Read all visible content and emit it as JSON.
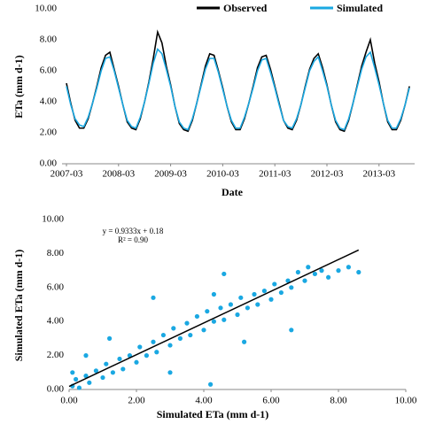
{
  "chart_data": [
    {
      "type": "line",
      "y_label": "ETa (mm d-1)",
      "x_label": "Date",
      "x": [
        "2007-03",
        "2007-04",
        "2007-05",
        "2007-06",
        "2007-07",
        "2007-08",
        "2007-09",
        "2007-10",
        "2007-11",
        "2007-12",
        "2008-01",
        "2008-02",
        "2008-03",
        "2008-04",
        "2008-05",
        "2008-06",
        "2008-07",
        "2008-08",
        "2008-09",
        "2008-10",
        "2008-11",
        "2008-12",
        "2009-01",
        "2009-02",
        "2009-03",
        "2009-04",
        "2009-05",
        "2009-06",
        "2009-07",
        "2009-08",
        "2009-09",
        "2009-10",
        "2009-11",
        "2009-12",
        "2010-01",
        "2010-02",
        "2010-03",
        "2010-04",
        "2010-05",
        "2010-06",
        "2010-07",
        "2010-08",
        "2010-09",
        "2010-10",
        "2010-11",
        "2010-12",
        "2011-01",
        "2011-02",
        "2011-03",
        "2011-04",
        "2011-05",
        "2011-06",
        "2011-07",
        "2011-08",
        "2011-09",
        "2011-10",
        "2011-11",
        "2011-12",
        "2012-01",
        "2012-02",
        "2012-03",
        "2012-04",
        "2012-05",
        "2012-06",
        "2012-07",
        "2012-08",
        "2012-09",
        "2012-10",
        "2012-11",
        "2012-12",
        "2013-01",
        "2013-02",
        "2013-03",
        "2013-04",
        "2013-05",
        "2013-06",
        "2013-07",
        "2013-08",
        "2013-09",
        "2013-10"
      ],
      "series": [
        {
          "name": "Observed",
          "color": "#000000",
          "values": [
            5.2,
            3.9,
            2.8,
            2.3,
            2.3,
            2.9,
            3.9,
            5.0,
            6.2,
            7.0,
            7.2,
            6.1,
            5.0,
            3.8,
            2.7,
            2.3,
            2.2,
            2.9,
            4.0,
            5.3,
            6.8,
            8.5,
            7.8,
            6.3,
            5.1,
            3.7,
            2.6,
            2.2,
            2.1,
            2.8,
            3.9,
            5.1,
            6.3,
            7.1,
            7.0,
            6.0,
            4.9,
            3.7,
            2.7,
            2.2,
            2.2,
            2.9,
            3.9,
            5.0,
            6.2,
            6.9,
            7.0,
            6.1,
            5.0,
            3.9,
            2.8,
            2.3,
            2.2,
            2.8,
            3.8,
            5.0,
            6.1,
            6.8,
            7.1,
            6.2,
            5.1,
            3.8,
            2.7,
            2.2,
            2.1,
            2.8,
            3.9,
            5.1,
            6.3,
            7.2,
            8.0,
            6.5,
            5.3,
            3.9,
            2.7,
            2.2,
            2.2,
            2.8,
            3.8,
            5.0
          ]
        },
        {
          "name": "Simulated",
          "color": "#1aa8e2",
          "values": [
            5.0,
            3.8,
            2.9,
            2.5,
            2.4,
            3.0,
            3.9,
            4.9,
            6.0,
            6.8,
            6.9,
            6.0,
            4.9,
            3.8,
            2.8,
            2.4,
            2.3,
            3.0,
            4.0,
            5.2,
            6.5,
            7.4,
            7.1,
            6.1,
            5.0,
            3.7,
            2.7,
            2.3,
            2.2,
            2.9,
            3.9,
            5.0,
            6.1,
            6.8,
            6.8,
            5.9,
            4.8,
            3.7,
            2.8,
            2.3,
            2.3,
            3.0,
            3.9,
            4.9,
            6.0,
            6.7,
            6.8,
            5.9,
            4.9,
            3.8,
            2.8,
            2.4,
            2.3,
            2.9,
            3.8,
            4.9,
            6.0,
            6.6,
            6.9,
            6.0,
            5.0,
            3.8,
            2.8,
            2.3,
            2.2,
            2.9,
            3.9,
            5.0,
            6.1,
            6.9,
            7.2,
            6.2,
            5.1,
            3.9,
            2.8,
            2.3,
            2.3,
            2.9,
            3.8,
            4.9
          ]
        }
      ],
      "xticks": [
        "2007-03",
        "2008-03",
        "2009-03",
        "2010-03",
        "2011-03",
        "2012-03",
        "2013-03"
      ],
      "ylim": [
        0,
        10
      ],
      "yticks": [
        {
          "value": 0,
          "label": "0.00"
        },
        {
          "value": 2,
          "label": "2.00"
        },
        {
          "value": 4,
          "label": "4.00"
        },
        {
          "value": 6,
          "label": "6.00"
        },
        {
          "value": 8,
          "label": "8.00"
        },
        {
          "value": 10,
          "label": "10.00"
        }
      ],
      "legend": "top"
    },
    {
      "type": "scatter",
      "y_label": "Simulated ETa (mm d-1)",
      "x_label": "Simulated ETa (mm d-1)",
      "color": "#1aa8e2",
      "x": [
        0.1,
        0.2,
        0.3,
        0.5,
        0.6,
        0.8,
        1.0,
        1.1,
        1.3,
        1.5,
        1.6,
        1.8,
        2.0,
        2.1,
        2.3,
        2.5,
        2.6,
        2.8,
        3.0,
        3.1,
        3.3,
        3.5,
        3.6,
        3.8,
        4.0,
        4.1,
        4.3,
        4.5,
        4.6,
        4.8,
        5.0,
        5.1,
        5.3,
        5.5,
        5.6,
        5.8,
        6.0,
        6.1,
        6.3,
        6.5,
        6.6,
        6.8,
        7.0,
        7.1,
        7.3,
        7.5,
        7.7,
        8.0,
        8.3,
        8.6,
        1.2,
        0.5,
        0.1,
        2.5,
        4.6,
        3.0,
        4.2,
        5.2,
        6.6,
        4.3
      ],
      "values": [
        0.2,
        0.6,
        0.1,
        0.8,
        0.4,
        1.1,
        0.7,
        1.5,
        1.0,
        1.8,
        1.2,
        2.0,
        1.6,
        2.5,
        2.0,
        2.8,
        2.2,
        3.2,
        2.6,
        3.6,
        3.0,
        3.9,
        3.2,
        4.3,
        3.5,
        4.6,
        4.0,
        4.8,
        4.1,
        5.0,
        4.4,
        5.4,
        4.8,
        5.6,
        5.0,
        5.8,
        5.3,
        6.2,
        5.7,
        6.4,
        6.0,
        6.9,
        6.4,
        7.2,
        6.8,
        7.0,
        6.6,
        7.0,
        7.2,
        6.9,
        3.0,
        2.0,
        1.0,
        5.4,
        6.8,
        1.0,
        0.3,
        2.8,
        3.5,
        5.6
      ],
      "trendline": {
        "equation": "y = 0.9333x + 0.18",
        "r_squared": "R² = 0.90",
        "color": "#000000",
        "x": [
          0,
          8.6
        ],
        "values": [
          0.18,
          8.206
        ]
      },
      "xlim": [
        0,
        10
      ],
      "xticks": [
        {
          "value": 0,
          "label": "0.00"
        },
        {
          "value": 2,
          "label": "2.00"
        },
        {
          "value": 4,
          "label": "4.00"
        },
        {
          "value": 6,
          "label": "6.00"
        },
        {
          "value": 8,
          "label": "8.00"
        },
        {
          "value": 10,
          "label": "10.00"
        }
      ],
      "ylim": [
        0,
        10
      ],
      "yticks": [
        {
          "value": 0,
          "label": "0.00"
        },
        {
          "value": 2,
          "label": "2.00"
        },
        {
          "value": 4,
          "label": "4.00"
        },
        {
          "value": 6,
          "label": "6.00"
        },
        {
          "value": 8,
          "label": "8.00"
        },
        {
          "value": 10,
          "label": "10.00"
        }
      ]
    }
  ]
}
